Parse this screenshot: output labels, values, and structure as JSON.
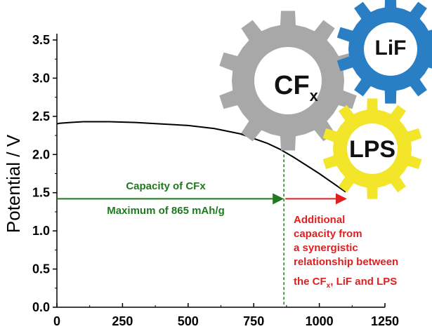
{
  "chart_data": {
    "type": "line",
    "xlabel": "",
    "ylabel": "Potential / V",
    "xlim": [
      0,
      1250
    ],
    "ylim": [
      0.0,
      3.5
    ],
    "x_ticks": [
      "0",
      "250",
      "500",
      "750",
      "1000",
      "1250"
    ],
    "y_ticks": [
      "0.0",
      "0.5",
      "1.0",
      "1.5",
      "2.0",
      "2.5",
      "3.0",
      "3.5"
    ],
    "x_tick_values": [
      0,
      250,
      500,
      750,
      1000,
      1250
    ],
    "y_tick_values": [
      0.0,
      0.5,
      1.0,
      1.5,
      2.0,
      2.5,
      3.0,
      3.5
    ],
    "series": [
      {
        "x": [
          0,
          10,
          50,
          100,
          150,
          200,
          300,
          400,
          500,
          600,
          700,
          800,
          850,
          900,
          950,
          1000,
          1050,
          1100
        ],
        "y": [
          2.4,
          2.41,
          2.42,
          2.43,
          2.43,
          2.43,
          2.42,
          2.4,
          2.38,
          2.34,
          2.27,
          2.15,
          2.07,
          1.97,
          1.86,
          1.75,
          1.63,
          1.51
        ]
      }
    ],
    "vline_x": 865,
    "arrow_y": 1.42,
    "green_arrow": [
      0,
      865
    ],
    "red_arrow": [
      865,
      1100
    ],
    "annotations": {
      "capacity_label": "Capacity of CFx",
      "maximum_label": "Maximum of 865 mAh/g",
      "additional_lines": [
        "Additional",
        "capacity from",
        "a synergistic",
        "relationship between"
      ],
      "additional_last_line_parts": [
        "the CF",
        "x",
        ", LiF and LPS"
      ]
    },
    "colors": {
      "green": "#1f7a1f",
      "red": "#e02020",
      "gear_gray": "#a8a8a8",
      "gear_blue": "#2a7fc4",
      "gear_yellow": "#f2e52a",
      "line": "#000000"
    },
    "gears": {
      "cfx": {
        "label": "CF",
        "sub": "x"
      },
      "lif": {
        "label": "LiF"
      },
      "lps": {
        "label": "LPS"
      }
    }
  }
}
